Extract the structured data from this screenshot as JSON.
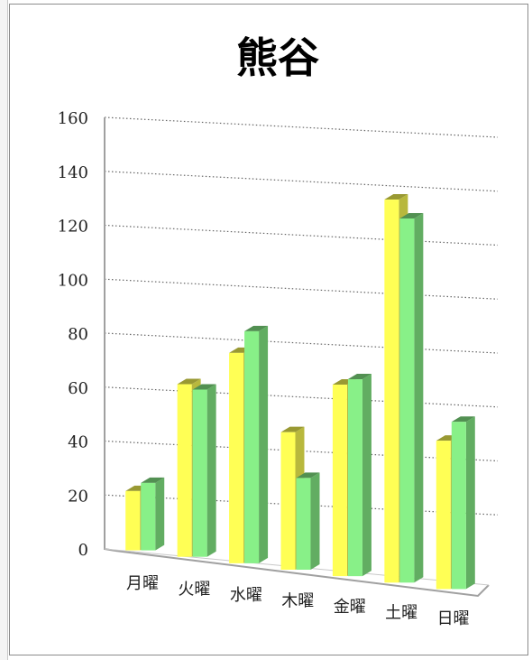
{
  "chart_data": {
    "type": "bar",
    "title": "熊谷",
    "categories": [
      "月曜",
      "火曜",
      "水曜",
      "木曜",
      "金曜",
      "土曜",
      "日曜"
    ],
    "series": [
      {
        "values": [
          22,
          64,
          78,
          51,
          71,
          142,
          55
        ],
        "color": "#ffff55"
      },
      {
        "values": [
          25,
          62,
          86,
          34,
          73,
          135,
          62
        ],
        "color": "#88f088"
      }
    ],
    "y_ticks": [
      0,
      20,
      40,
      60,
      80,
      100,
      120,
      140,
      160
    ],
    "ylim": [
      0,
      160
    ],
    "grid": "dotted",
    "style": "3d-clustered-column"
  }
}
